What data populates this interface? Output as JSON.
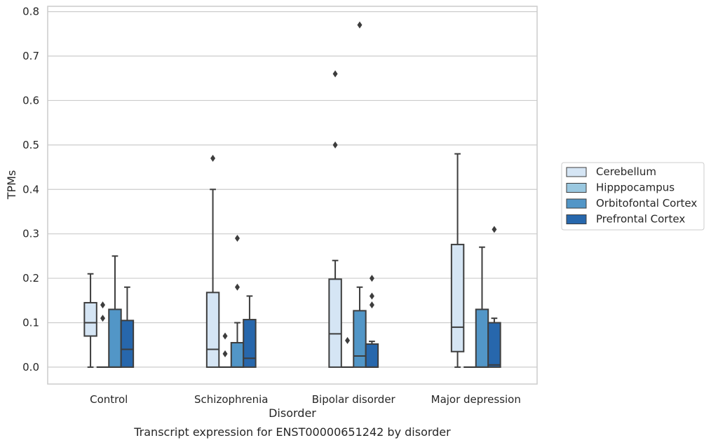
{
  "caption": "Transcript expression for ENST00000651242 by disorder",
  "chart_data": {
    "type": "box",
    "title": "",
    "xlabel": "Disorder",
    "ylabel": "TPMs",
    "ylim": [
      -0.038,
      0.812
    ],
    "yticks": [
      0.0,
      0.1,
      0.2,
      0.3,
      0.4,
      0.5,
      0.6,
      0.7,
      0.8
    ],
    "ytick_labels": [
      "0.0",
      "0.1",
      "0.2",
      "0.3",
      "0.4",
      "0.5",
      "0.6",
      "0.7",
      "0.8"
    ],
    "grid": true,
    "legend_position": "right",
    "categories": [
      "Control",
      "Schizophrenia",
      "Bipolar disorder",
      "Major depression"
    ],
    "series": [
      {
        "name": "Cerebellum",
        "color": "#d5e5f4",
        "boxes": [
          {
            "whislo": 0.0,
            "q1": 0.07,
            "med": 0.1,
            "q3": 0.145,
            "whishi": 0.21,
            "fliers": []
          },
          {
            "whislo": 0.0,
            "q1": 0.0,
            "med": 0.04,
            "q3": 0.168,
            "whishi": 0.4,
            "fliers": [
              0.47
            ]
          },
          {
            "whislo": 0.0,
            "q1": 0.0,
            "med": 0.075,
            "q3": 0.198,
            "whishi": 0.24,
            "fliers": [
              0.5,
              0.66
            ]
          },
          {
            "whislo": 0.0,
            "q1": 0.035,
            "med": 0.09,
            "q3": 0.276,
            "whishi": 0.48,
            "fliers": []
          }
        ]
      },
      {
        "name": "Hipppocampus",
        "color": "#9ac8e0",
        "boxes": [
          {
            "whislo": 0.0,
            "q1": 0.0,
            "med": 0.0,
            "q3": 0.0,
            "whishi": 0.0,
            "fliers": [
              0.11,
              0.14
            ]
          },
          {
            "whislo": 0.0,
            "q1": 0.0,
            "med": 0.0,
            "q3": 0.0,
            "whishi": 0.0,
            "fliers": [
              0.03,
              0.07
            ]
          },
          {
            "whislo": 0.0,
            "q1": 0.0,
            "med": 0.0,
            "q3": 0.0,
            "whishi": 0.0,
            "fliers": [
              0.06
            ]
          },
          {
            "whislo": 0.0,
            "q1": 0.0,
            "med": 0.0,
            "q3": 0.0,
            "whishi": 0.0,
            "fliers": []
          }
        ]
      },
      {
        "name": "Orbitofontal Cortex",
        "color": "#5296c7",
        "boxes": [
          {
            "whislo": 0.0,
            "q1": 0.0,
            "med": 0.0,
            "q3": 0.13,
            "whishi": 0.25,
            "fliers": []
          },
          {
            "whislo": 0.0,
            "q1": 0.0,
            "med": 0.0,
            "q3": 0.055,
            "whishi": 0.1,
            "fliers": [
              0.18,
              0.29
            ]
          },
          {
            "whislo": 0.0,
            "q1": 0.0,
            "med": 0.025,
            "q3": 0.127,
            "whishi": 0.18,
            "fliers": [
              0.77
            ]
          },
          {
            "whislo": 0.0,
            "q1": 0.0,
            "med": 0.0,
            "q3": 0.13,
            "whishi": 0.27,
            "fliers": []
          }
        ]
      },
      {
        "name": "Prefrontal Cortex",
        "color": "#2767ac",
        "boxes": [
          {
            "whislo": 0.0,
            "q1": 0.0,
            "med": 0.04,
            "q3": 0.105,
            "whishi": 0.18,
            "fliers": []
          },
          {
            "whislo": 0.0,
            "q1": 0.0,
            "med": 0.02,
            "q3": 0.107,
            "whishi": 0.16,
            "fliers": []
          },
          {
            "whislo": 0.0,
            "q1": 0.0,
            "med": 0.0,
            "q3": 0.052,
            "whishi": 0.058,
            "fliers": [
              0.14,
              0.16,
              0.2
            ]
          },
          {
            "whislo": 0.0,
            "q1": 0.0,
            "med": 0.005,
            "q3": 0.1,
            "whishi": 0.11,
            "fliers": [
              0.31
            ]
          }
        ]
      }
    ]
  }
}
